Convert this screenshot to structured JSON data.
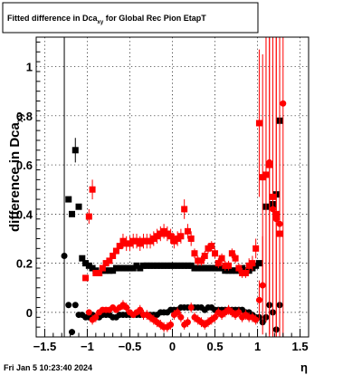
{
  "title": {
    "main": "Fitted difference in Dca",
    "subscript": "xy",
    "rest": " for Global Rec Pion EtapT"
  },
  "footer": {
    "timestamp": "Fri Jan  5 10:23:40 2024"
  },
  "chart_data": {
    "type": "scatter",
    "xlabel": "η",
    "ylabel": "difference in Dca",
    "ylabel_subscript": "xy",
    "xlim": [
      -1.6,
      1.6
    ],
    "ylim": [
      -0.1,
      1.12
    ],
    "x_ticks": [
      -1.5,
      -1,
      -0.5,
      0,
      0.5,
      1,
      1.5
    ],
    "x_tick_labels": [
      "−1.5",
      "−1",
      "−0.5",
      "0",
      "0.5",
      "1",
      "1.5"
    ],
    "y_ticks": [
      0,
      0.2,
      0.4,
      0.6,
      0.8,
      1
    ],
    "y_tick_labels": [
      "0",
      "0.2",
      "0.4",
      "0.6",
      "0.8",
      "1"
    ],
    "grid": true,
    "series": [
      {
        "color": "#000000",
        "marker": "square",
        "points": [
          [
            -1.22,
            0.46,
            0.0
          ],
          [
            -1.18,
            0.4,
            0.0
          ],
          [
            -1.14,
            0.66,
            0.05
          ],
          [
            -1.1,
            0.43,
            0.0
          ],
          [
            -1.06,
            0.22,
            0.0
          ],
          [
            -1.02,
            0.2,
            0.0
          ],
          [
            -0.98,
            0.19,
            0.0
          ],
          [
            -0.94,
            0.18,
            0.0
          ],
          [
            -0.9,
            0.17,
            0.0
          ],
          [
            -0.86,
            0.16,
            0.0
          ],
          [
            -0.82,
            0.17,
            0.0
          ],
          [
            -0.78,
            0.17,
            0.0
          ],
          [
            -0.74,
            0.17,
            0.0
          ],
          [
            -0.7,
            0.17,
            0.0
          ],
          [
            -0.66,
            0.18,
            0.0
          ],
          [
            -0.62,
            0.18,
            0.0
          ],
          [
            -0.58,
            0.18,
            0.0
          ],
          [
            -0.54,
            0.18,
            0.0
          ],
          [
            -0.5,
            0.18,
            0.0
          ],
          [
            -0.46,
            0.18,
            0.0
          ],
          [
            -0.42,
            0.19,
            0.0
          ],
          [
            -0.38,
            0.18,
            0.0
          ],
          [
            -0.34,
            0.19,
            0.0
          ],
          [
            -0.3,
            0.19,
            0.0
          ],
          [
            -0.26,
            0.19,
            0.0
          ],
          [
            -0.22,
            0.19,
            0.0
          ],
          [
            -0.18,
            0.19,
            0.0
          ],
          [
            -0.14,
            0.19,
            0.0
          ],
          [
            -0.1,
            0.19,
            0.0
          ],
          [
            -0.06,
            0.19,
            0.0
          ],
          [
            -0.02,
            0.19,
            0.0
          ],
          [
            0.02,
            0.19,
            0.0
          ],
          [
            0.06,
            0.19,
            0.0
          ],
          [
            0.1,
            0.19,
            0.0
          ],
          [
            0.14,
            0.19,
            0.0
          ],
          [
            0.18,
            0.19,
            0.0
          ],
          [
            0.22,
            0.19,
            0.0
          ],
          [
            0.26,
            0.18,
            0.0
          ],
          [
            0.3,
            0.18,
            0.0
          ],
          [
            0.34,
            0.18,
            0.0
          ],
          [
            0.38,
            0.18,
            0.0
          ],
          [
            0.42,
            0.18,
            0.0
          ],
          [
            0.46,
            0.18,
            0.0
          ],
          [
            0.5,
            0.18,
            0.0
          ],
          [
            0.54,
            0.18,
            0.0
          ],
          [
            0.58,
            0.18,
            0.0
          ],
          [
            0.62,
            0.17,
            0.0
          ],
          [
            0.66,
            0.17,
            0.0
          ],
          [
            0.7,
            0.17,
            0.0
          ],
          [
            0.74,
            0.17,
            0.0
          ],
          [
            0.78,
            0.17,
            0.0
          ],
          [
            0.82,
            0.18,
            0.0
          ],
          [
            0.86,
            0.17,
            0.0
          ],
          [
            0.9,
            0.17,
            0.0
          ],
          [
            0.94,
            0.18,
            0.0
          ],
          [
            0.98,
            0.19,
            0.0
          ],
          [
            1.02,
            0.2,
            0.0
          ],
          [
            1.1,
            0.43,
            0.0
          ],
          [
            1.18,
            0.44,
            0.0
          ],
          [
            1.22,
            0.48,
            0.0
          ],
          [
            1.26,
            0.78,
            0.0
          ]
        ]
      },
      {
        "color": "#000000",
        "marker": "circle",
        "points": [
          [
            -1.27,
            0.23,
            1.1
          ],
          [
            -1.22,
            0.03,
            0.0
          ],
          [
            -1.18,
            -0.08,
            0.0
          ],
          [
            -1.14,
            0.03,
            0.0
          ],
          [
            -1.1,
            -0.01,
            0.0
          ],
          [
            -1.06,
            -0.01,
            0.0
          ],
          [
            -1.02,
            -0.02,
            0.0
          ],
          [
            -0.98,
            -0.02,
            0.0
          ],
          [
            -0.94,
            -0.01,
            0.0
          ],
          [
            -0.9,
            -0.02,
            0.0
          ],
          [
            -0.86,
            -0.02,
            0.0
          ],
          [
            -0.82,
            -0.01,
            0.0
          ],
          [
            -0.78,
            -0.01,
            0.0
          ],
          [
            -0.74,
            -0.01,
            0.0
          ],
          [
            -0.7,
            -0.02,
            0.0
          ],
          [
            -0.66,
            -0.02,
            0.0
          ],
          [
            -0.62,
            -0.01,
            0.0
          ],
          [
            -0.58,
            -0.01,
            0.0
          ],
          [
            -0.54,
            -0.01,
            0.0
          ],
          [
            -0.5,
            -0.01,
            0.0
          ],
          [
            -0.46,
            -0.01,
            0.0
          ],
          [
            -0.42,
            -0.01,
            0.0
          ],
          [
            -0.38,
            -0.01,
            0.0
          ],
          [
            -0.34,
            -0.01,
            0.0
          ],
          [
            -0.3,
            -0.01,
            0.0
          ],
          [
            -0.26,
            -0.01,
            0.0
          ],
          [
            -0.22,
            -0.01,
            0.0
          ],
          [
            -0.18,
            -0.01,
            0.0
          ],
          [
            -0.14,
            0.0,
            0.0
          ],
          [
            -0.1,
            0.0,
            0.0
          ],
          [
            -0.06,
            0.0,
            0.0
          ],
          [
            -0.02,
            0.01,
            0.0
          ],
          [
            0.02,
            0.01,
            0.0
          ],
          [
            0.06,
            0.01,
            0.0
          ],
          [
            0.1,
            0.02,
            0.0
          ],
          [
            0.14,
            0.02,
            0.0
          ],
          [
            0.18,
            0.02,
            0.0
          ],
          [
            0.22,
            0.02,
            0.0
          ],
          [
            0.26,
            0.02,
            0.0
          ],
          [
            0.3,
            0.02,
            0.0
          ],
          [
            0.34,
            0.02,
            0.0
          ],
          [
            0.38,
            0.01,
            0.0
          ],
          [
            0.42,
            0.02,
            0.0
          ],
          [
            0.46,
            0.02,
            0.0
          ],
          [
            0.5,
            0.01,
            0.0
          ],
          [
            0.54,
            0.01,
            0.0
          ],
          [
            0.58,
            0.01,
            0.0
          ],
          [
            0.62,
            0.01,
            0.0
          ],
          [
            0.66,
            0.01,
            0.0
          ],
          [
            0.7,
            0.01,
            0.0
          ],
          [
            0.74,
            0.01,
            0.0
          ],
          [
            0.78,
            0.01,
            0.0
          ],
          [
            0.82,
            0.01,
            0.0
          ],
          [
            0.86,
            0.0,
            0.0
          ],
          [
            0.9,
            0.0,
            0.0
          ],
          [
            0.94,
            -0.01,
            0.0
          ],
          [
            0.98,
            -0.02,
            0.0
          ],
          [
            1.02,
            -0.02,
            0.0
          ],
          [
            1.06,
            -0.04,
            0.0
          ],
          [
            1.1,
            -0.02,
            0.0
          ],
          [
            1.14,
            0.03,
            0.0
          ],
          [
            1.18,
            0.0,
            0.0
          ],
          [
            1.22,
            -0.07,
            0.0
          ],
          [
            1.26,
            0.03,
            0.0
          ]
        ]
      },
      {
        "color": "#ff0000",
        "marker": "square",
        "points": [
          [
            -1.02,
            0.14,
            0.0
          ],
          [
            -0.98,
            0.39,
            0.03
          ],
          [
            -0.94,
            0.5,
            0.04
          ],
          [
            -0.9,
            0.16,
            0.0
          ],
          [
            -0.86,
            0.16,
            0.0
          ],
          [
            -0.82,
            0.18,
            0.0
          ],
          [
            -0.78,
            0.2,
            0.0
          ],
          [
            -0.74,
            0.21,
            0.0
          ],
          [
            -0.7,
            0.23,
            0.0
          ],
          [
            -0.66,
            0.25,
            0.0
          ],
          [
            -0.62,
            0.27,
            0.0
          ],
          [
            -0.58,
            0.29,
            0.03
          ],
          [
            -0.54,
            0.28,
            0.03
          ],
          [
            -0.5,
            0.28,
            0.03
          ],
          [
            -0.46,
            0.29,
            0.03
          ],
          [
            -0.42,
            0.29,
            0.03
          ],
          [
            -0.38,
            0.28,
            0.03
          ],
          [
            -0.34,
            0.29,
            0.03
          ],
          [
            -0.3,
            0.29,
            0.03
          ],
          [
            -0.26,
            0.29,
            0.03
          ],
          [
            -0.22,
            0.3,
            0.03
          ],
          [
            -0.18,
            0.31,
            0.03
          ],
          [
            -0.14,
            0.32,
            0.03
          ],
          [
            -0.1,
            0.33,
            0.03
          ],
          [
            -0.06,
            0.32,
            0.03
          ],
          [
            -0.02,
            0.31,
            0.03
          ],
          [
            0.02,
            0.29,
            0.03
          ],
          [
            0.06,
            0.3,
            0.03
          ],
          [
            0.1,
            0.31,
            0.03
          ],
          [
            0.14,
            0.42,
            0.04
          ],
          [
            0.18,
            0.33,
            0.03
          ],
          [
            0.22,
            0.3,
            0.03
          ],
          [
            0.26,
            0.24,
            0.02
          ],
          [
            0.3,
            0.21,
            0.02
          ],
          [
            0.34,
            0.21,
            0.02
          ],
          [
            0.38,
            0.23,
            0.02
          ],
          [
            0.42,
            0.26,
            0.02
          ],
          [
            0.46,
            0.27,
            0.02
          ],
          [
            0.5,
            0.24,
            0.02
          ],
          [
            0.54,
            0.2,
            0.02
          ],
          [
            0.58,
            0.22,
            0.02
          ],
          [
            0.62,
            0.19,
            0.02
          ],
          [
            0.66,
            0.19,
            0.02
          ],
          [
            0.7,
            0.24,
            0.02
          ],
          [
            0.74,
            0.22,
            0.02
          ],
          [
            0.78,
            0.18,
            0.02
          ],
          [
            0.82,
            0.16,
            0.02
          ],
          [
            0.86,
            0.16,
            0.02
          ],
          [
            0.9,
            0.19,
            0.03
          ],
          [
            0.94,
            0.2,
            0.03
          ],
          [
            0.98,
            0.26,
            0.04
          ],
          [
            1.02,
            0.77,
            0.3
          ],
          [
            1.06,
            0.55,
            0.5
          ],
          [
            1.1,
            0.56,
            0.6
          ],
          [
            1.14,
            0.6,
            0.7
          ],
          [
            1.18,
            0.47,
            0.8
          ],
          [
            1.22,
            0.4,
            0.9
          ],
          [
            1.26,
            0.32,
            1.0
          ]
        ]
      },
      {
        "color": "#ff0000",
        "marker": "circle",
        "points": [
          [
            -0.98,
            0.0,
            0.0
          ],
          [
            -0.94,
            -0.03,
            0.02
          ],
          [
            -0.9,
            -0.02,
            0.02
          ],
          [
            -0.86,
            0.0,
            0.0
          ],
          [
            -0.82,
            0.01,
            0.0
          ],
          [
            -0.78,
            0.01,
            0.0
          ],
          [
            -0.74,
            0.01,
            0.0
          ],
          [
            -0.7,
            0.02,
            0.0
          ],
          [
            -0.66,
            0.01,
            0.0
          ],
          [
            -0.62,
            0.02,
            0.0
          ],
          [
            -0.58,
            0.03,
            0.02
          ],
          [
            -0.54,
            0.02,
            0.02
          ],
          [
            -0.5,
            0.0,
            0.0
          ],
          [
            -0.46,
            -0.01,
            0.0
          ],
          [
            -0.42,
            0.0,
            0.0
          ],
          [
            -0.38,
            0.01,
            0.02
          ],
          [
            -0.34,
            -0.01,
            0.02
          ],
          [
            -0.3,
            -0.01,
            0.02
          ],
          [
            -0.26,
            -0.02,
            0.02
          ],
          [
            -0.22,
            -0.03,
            0.02
          ],
          [
            -0.18,
            -0.04,
            0.02
          ],
          [
            -0.14,
            -0.05,
            0.02
          ],
          [
            -0.1,
            -0.06,
            0.02
          ],
          [
            -0.06,
            -0.06,
            0.02
          ],
          [
            -0.02,
            -0.05,
            0.02
          ],
          [
            0.02,
            -0.01,
            0.02
          ],
          [
            0.06,
            0.0,
            0.02
          ],
          [
            0.1,
            -0.02,
            0.02
          ],
          [
            0.14,
            -0.05,
            0.02
          ],
          [
            0.18,
            -0.04,
            0.02
          ],
          [
            0.22,
            0.02,
            0.02
          ],
          [
            0.26,
            -0.02,
            0.02
          ],
          [
            0.3,
            -0.03,
            0.02
          ],
          [
            0.34,
            -0.04,
            0.02
          ],
          [
            0.38,
            -0.05,
            0.02
          ],
          [
            0.42,
            -0.04,
            0.02
          ],
          [
            0.46,
            -0.03,
            0.02
          ],
          [
            0.5,
            -0.02,
            0.02
          ],
          [
            0.54,
            0.0,
            0.02
          ],
          [
            0.58,
            -0.01,
            0.02
          ],
          [
            0.62,
            0.0,
            0.02
          ],
          [
            0.66,
            0.01,
            0.02
          ],
          [
            0.7,
            0.0,
            0.02
          ],
          [
            0.74,
            -0.01,
            0.02
          ],
          [
            0.78,
            0.0,
            0.02
          ],
          [
            0.82,
            -0.02,
            0.02
          ],
          [
            0.86,
            -0.01,
            0.02
          ],
          [
            0.9,
            -0.02,
            0.02
          ],
          [
            0.94,
            -0.02,
            0.02
          ],
          [
            0.98,
            -0.03,
            0.02
          ],
          [
            1.02,
            0.05,
            0.08
          ],
          [
            1.06,
            0.11,
            0.2
          ],
          [
            1.1,
            0.56,
            0.6
          ],
          [
            1.14,
            0.61,
            0.7
          ],
          [
            1.18,
            0.42,
            0.8
          ],
          [
            1.22,
            0.38,
            0.9
          ],
          [
            1.26,
            0.36,
            1.0
          ],
          [
            1.3,
            0.85,
            1.2
          ]
        ]
      }
    ]
  }
}
